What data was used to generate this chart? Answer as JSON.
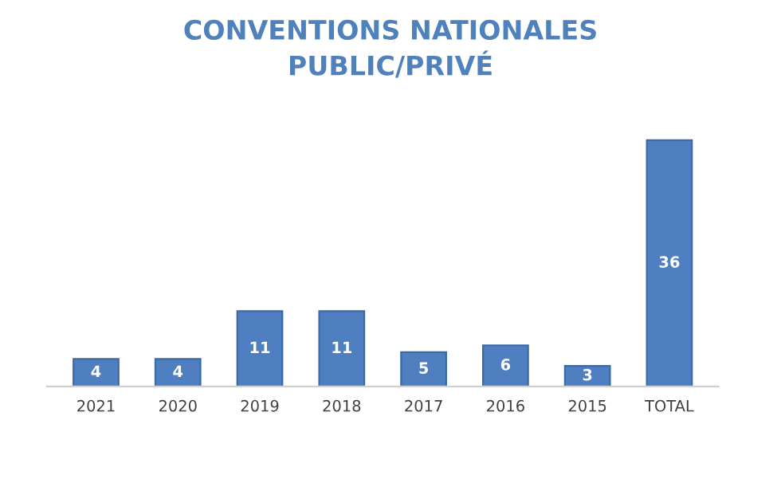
{
  "chart_data": {
    "type": "bar",
    "title": "CONVENTIONS NATIONALES\nPUBLIC/PRIVÉ",
    "categories": [
      "2021",
      "2020",
      "2019",
      "2018",
      "2017",
      "2016",
      "2015",
      "TOTAL"
    ],
    "values": [
      4,
      4,
      11,
      11,
      5,
      6,
      3,
      36
    ],
    "color": "#4f7fc0",
    "data_labels": true
  }
}
